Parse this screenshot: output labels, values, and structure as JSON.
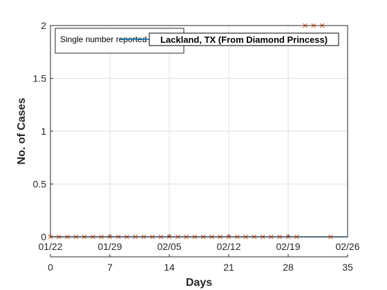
{
  "chart_data": {
    "type": "line",
    "title": "Lackland, TX (From Diamond Princess)",
    "xlabel": "Days",
    "ylabel": "No. of Cases",
    "xlim": [
      0,
      35
    ],
    "ylim": [
      0,
      2
    ],
    "x_ticks": [
      0,
      7,
      14,
      21,
      28,
      35
    ],
    "y_ticks": [
      0,
      0.5,
      1,
      1.5,
      2
    ],
    "y_tick_labels": [
      "0",
      "0.5",
      "1",
      "1.5",
      "2"
    ],
    "date_ticks": [
      "01/22",
      "01/29",
      "02/05",
      "02/12",
      "02/19",
      "02/26"
    ],
    "grid": true,
    "legend_position": "top-left",
    "series": [
      {
        "name": "Single number reported",
        "marker": "x",
        "color": "#D95319",
        "x": [
          0,
          1,
          2,
          3,
          4,
          5,
          6,
          7,
          8,
          9,
          10,
          11,
          12,
          13,
          14,
          15,
          16,
          17,
          18,
          19,
          20,
          21,
          22,
          23,
          24,
          25,
          26,
          27,
          28,
          29,
          30,
          31,
          32,
          33
        ],
        "y": [
          0,
          0,
          0,
          0,
          0,
          0,
          0,
          0,
          0,
          0,
          0,
          0,
          0,
          0,
          0,
          0,
          0,
          0,
          0,
          0,
          0,
          0,
          0,
          0,
          0,
          0,
          0,
          0,
          0,
          0,
          2,
          2,
          2,
          0
        ]
      },
      {
        "name": "",
        "marker": "line",
        "color": "#0072BD",
        "x": [
          0,
          35
        ],
        "y": [
          0,
          0
        ]
      }
    ]
  }
}
